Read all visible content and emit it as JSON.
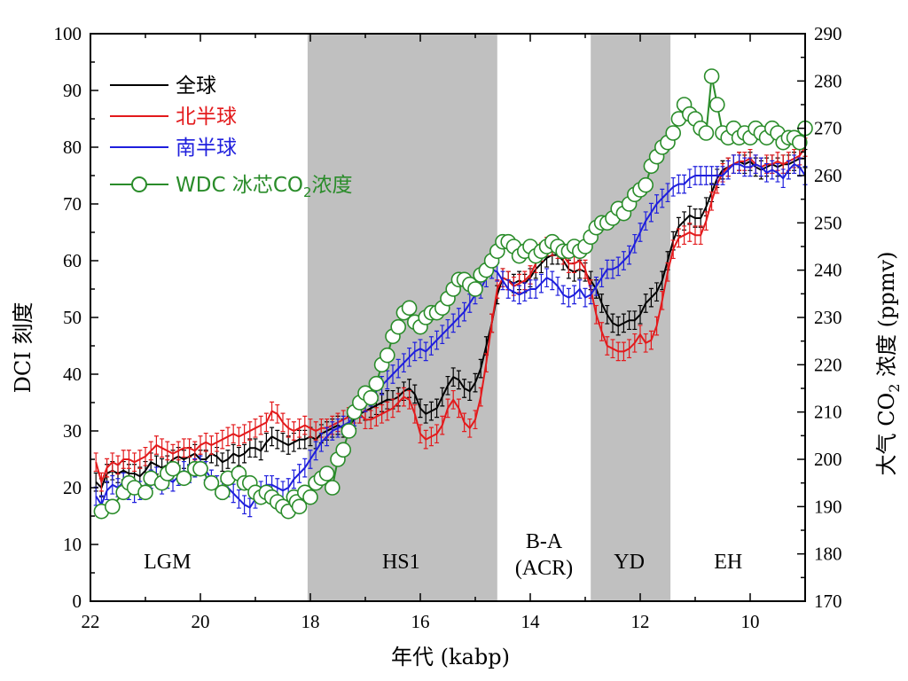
{
  "chart_data": {
    "type": "line",
    "xlabel": "年代 (kabp)",
    "ylabel_left": "DCI 刻度",
    "ylabel_right": "大气 CO₂ 浓度 (ppmv)",
    "ylabel_right_parts": {
      "prefix": "大气 CO",
      "subscript": "2",
      "suffix": " 浓度 (ppmv)"
    },
    "xlim": [
      22,
      9
    ],
    "ylim_left": [
      0,
      100
    ],
    "ylim_right": [
      170,
      290
    ],
    "x_ticks": [
      22,
      20,
      18,
      16,
      14,
      12,
      10
    ],
    "x_tick_labels": [
      "22",
      "20",
      "18",
      "16",
      "14",
      "12",
      "10"
    ],
    "y_left_ticks": [
      0,
      10,
      20,
      30,
      40,
      50,
      60,
      70,
      80,
      90,
      100
    ],
    "y_left_tick_labels": [
      "0",
      "10",
      "20",
      "30",
      "40",
      "50",
      "60",
      "70",
      "80",
      "90",
      "100"
    ],
    "y_right_ticks": [
      170,
      180,
      190,
      200,
      210,
      220,
      230,
      240,
      250,
      260,
      270,
      280,
      290
    ],
    "y_right_tick_labels": [
      "170",
      "180",
      "190",
      "200",
      "210",
      "220",
      "230",
      "240",
      "250",
      "260",
      "270",
      "280",
      "290"
    ],
    "shaded_periods": [
      {
        "from": 18.05,
        "to": 14.6,
        "color": "#c0c0c0"
      },
      {
        "from": 12.9,
        "to": 11.45,
        "color": "#c0c0c0"
      }
    ],
    "period_labels": [
      {
        "x": 20.6,
        "lines": [
          "LGM"
        ]
      },
      {
        "x": 16.35,
        "lines": [
          "HS1"
        ]
      },
      {
        "x": 13.75,
        "lines": [
          "B-A",
          "(ACR)"
        ]
      },
      {
        "x": 12.2,
        "lines": [
          "YD"
        ]
      },
      {
        "x": 10.4,
        "lines": [
          "EH"
        ]
      }
    ],
    "series": [
      {
        "name": "全球",
        "color": "#000000",
        "axis": "left",
        "errorbars": true,
        "x": [
          21.9,
          21.8,
          21.7,
          21.6,
          21.5,
          21.4,
          21.3,
          21.2,
          21.1,
          21.0,
          20.9,
          20.8,
          20.7,
          20.6,
          20.5,
          20.4,
          20.3,
          20.2,
          20.1,
          20.0,
          19.9,
          19.8,
          19.7,
          19.6,
          19.5,
          19.4,
          19.3,
          19.2,
          19.1,
          19.0,
          18.9,
          18.8,
          18.7,
          18.6,
          18.5,
          18.4,
          18.3,
          18.2,
          18.1,
          18.0,
          17.9,
          17.8,
          17.7,
          17.6,
          17.5,
          17.4,
          17.3,
          17.2,
          17.1,
          17.0,
          16.9,
          16.8,
          16.7,
          16.6,
          16.5,
          16.4,
          16.3,
          16.2,
          16.1,
          16.0,
          15.9,
          15.8,
          15.7,
          15.6,
          15.5,
          15.4,
          15.3,
          15.2,
          15.1,
          15.0,
          14.9,
          14.8,
          14.7,
          14.6,
          14.5,
          14.4,
          14.3,
          14.2,
          14.1,
          14.0,
          13.9,
          13.8,
          13.7,
          13.6,
          13.5,
          13.4,
          13.3,
          13.2,
          13.1,
          13.0,
          12.9,
          12.8,
          12.7,
          12.6,
          12.5,
          12.4,
          12.3,
          12.2,
          12.1,
          12.0,
          11.9,
          11.8,
          11.7,
          11.6,
          11.5,
          11.4,
          11.3,
          11.2,
          11.1,
          11.0,
          10.9,
          10.8,
          10.7,
          10.6,
          10.5,
          10.4,
          10.3,
          10.2,
          10.1,
          10.0,
          9.9,
          9.8,
          9.7,
          9.6,
          9.5,
          9.4,
          9.3,
          9.2,
          9.1,
          9.0
        ],
        "y": [
          21.0,
          20.0,
          22.5,
          23.0,
          22.5,
          23.0,
          22.5,
          22.5,
          22.0,
          23.0,
          24.5,
          24.0,
          23.5,
          24.0,
          25.0,
          25.5,
          25.0,
          25.5,
          26.0,
          25.0,
          25.0,
          26.0,
          25.5,
          24.5,
          25.0,
          26.0,
          25.5,
          26.0,
          27.0,
          27.0,
          26.5,
          28.0,
          29.0,
          28.5,
          28.0,
          27.5,
          28.0,
          28.5,
          28.5,
          29.0,
          28.5,
          29.5,
          30.0,
          30.5,
          31.0,
          30.5,
          31.0,
          32.0,
          33.0,
          33.5,
          34.0,
          34.5,
          35.0,
          35.5,
          35.5,
          36.0,
          37.0,
          37.5,
          36.5,
          34.0,
          33.0,
          33.5,
          34.0,
          36.0,
          38.0,
          39.5,
          39.0,
          37.5,
          37.0,
          38.5,
          41.0,
          45.0,
          49.0,
          54.0,
          57.0,
          56.5,
          56.0,
          56.5,
          56.0,
          57.0,
          58.5,
          59.5,
          60.5,
          61.0,
          61.0,
          60.0,
          58.5,
          58.0,
          58.5,
          58.0,
          56.5,
          55.0,
          52.5,
          50.5,
          49.0,
          48.5,
          49.0,
          49.5,
          49.5,
          50.5,
          52.5,
          53.5,
          54.5,
          56.5,
          60.0,
          63.5,
          66.0,
          67.0,
          68.0,
          67.5,
          67.5,
          69.5,
          72.0,
          74.5,
          76.0,
          76.5,
          77.0,
          77.5,
          77.0,
          77.5,
          76.5,
          76.0,
          76.5,
          77.0,
          76.5,
          77.0,
          77.0,
          77.5,
          78.0,
          78.0
        ]
      },
      {
        "name": "北半球",
        "color": "#e31a1c",
        "axis": "left",
        "errorbars": true,
        "x": [
          21.9,
          21.8,
          21.7,
          21.6,
          21.5,
          21.4,
          21.3,
          21.2,
          21.1,
          21.0,
          20.9,
          20.8,
          20.7,
          20.6,
          20.5,
          20.4,
          20.3,
          20.2,
          20.1,
          20.0,
          19.9,
          19.8,
          19.7,
          19.6,
          19.5,
          19.4,
          19.3,
          19.2,
          19.1,
          19.0,
          18.9,
          18.8,
          18.7,
          18.6,
          18.5,
          18.4,
          18.3,
          18.2,
          18.1,
          18.0,
          17.9,
          17.8,
          17.7,
          17.6,
          17.5,
          17.4,
          17.3,
          17.2,
          17.1,
          17.0,
          16.9,
          16.8,
          16.7,
          16.6,
          16.5,
          16.4,
          16.3,
          16.2,
          16.1,
          16.0,
          15.9,
          15.8,
          15.7,
          15.6,
          15.5,
          15.4,
          15.3,
          15.2,
          15.1,
          15.0,
          14.9,
          14.8,
          14.7,
          14.6,
          14.5,
          14.4,
          14.3,
          14.2,
          14.1,
          14.0,
          13.9,
          13.8,
          13.7,
          13.6,
          13.5,
          13.4,
          13.3,
          13.2,
          13.1,
          13.0,
          12.9,
          12.8,
          12.7,
          12.6,
          12.5,
          12.4,
          12.3,
          12.2,
          12.1,
          12.0,
          11.9,
          11.8,
          11.7,
          11.6,
          11.5,
          11.4,
          11.3,
          11.2,
          11.1,
          11.0,
          10.9,
          10.8,
          10.7,
          10.6,
          10.5,
          10.4,
          10.3,
          10.2,
          10.1,
          10.0,
          9.9,
          9.8,
          9.7,
          9.6,
          9.5,
          9.4,
          9.3,
          9.2,
          9.1,
          9.0
        ],
        "y": [
          24.5,
          21.0,
          23.5,
          24.5,
          24.0,
          25.0,
          25.0,
          24.5,
          25.0,
          25.5,
          26.5,
          27.5,
          27.0,
          26.5,
          26.0,
          26.5,
          27.0,
          27.0,
          26.5,
          27.5,
          28.0,
          27.5,
          28.0,
          28.5,
          29.0,
          29.5,
          29.0,
          29.5,
          30.0,
          30.5,
          31.0,
          31.5,
          33.5,
          33.0,
          31.5,
          30.5,
          30.0,
          30.5,
          31.0,
          30.5,
          30.0,
          30.5,
          30.5,
          31.0,
          31.5,
          32.0,
          32.5,
          33.0,
          33.0,
          32.0,
          32.0,
          32.5,
          33.0,
          33.5,
          34.0,
          35.0,
          36.0,
          35.5,
          33.0,
          29.5,
          28.5,
          29.0,
          29.5,
          31.0,
          34.0,
          35.5,
          34.0,
          31.5,
          30.5,
          32.0,
          36.0,
          42.0,
          49.0,
          55.0,
          57.0,
          56.5,
          55.5,
          56.0,
          56.5,
          57.5,
          59.5,
          61.5,
          62.5,
          62.5,
          62.0,
          61.0,
          59.5,
          59.5,
          60.0,
          58.5,
          55.0,
          50.5,
          47.5,
          45.0,
          44.5,
          44.0,
          44.0,
          44.5,
          45.5,
          47.0,
          45.5,
          46.0,
          48.5,
          53.0,
          58.0,
          62.0,
          64.0,
          64.5,
          65.0,
          64.5,
          64.5,
          67.0,
          70.5,
          73.5,
          75.5,
          76.5,
          77.0,
          77.5,
          77.5,
          78.0,
          77.0,
          76.5,
          77.0,
          77.0,
          77.5,
          77.0,
          77.5,
          78.0,
          78.5,
          80.0
        ]
      },
      {
        "name": "南半球",
        "color": "#1f1fdd",
        "axis": "left",
        "errorbars": true,
        "x": [
          21.9,
          21.8,
          21.7,
          21.6,
          21.5,
          21.4,
          21.3,
          21.2,
          21.1,
          21.0,
          20.9,
          20.8,
          20.7,
          20.6,
          20.5,
          20.4,
          20.3,
          20.2,
          20.1,
          20.0,
          19.9,
          19.8,
          19.7,
          19.6,
          19.5,
          19.4,
          19.3,
          19.2,
          19.1,
          19.0,
          18.9,
          18.8,
          18.7,
          18.6,
          18.5,
          18.4,
          18.3,
          18.2,
          18.1,
          18.0,
          17.9,
          17.8,
          17.7,
          17.6,
          17.5,
          17.4,
          17.3,
          17.2,
          17.1,
          17.0,
          16.9,
          16.8,
          16.7,
          16.6,
          16.5,
          16.4,
          16.3,
          16.2,
          16.1,
          16.0,
          15.9,
          15.8,
          15.7,
          15.6,
          15.5,
          15.4,
          15.3,
          15.2,
          15.1,
          15.0,
          14.9,
          14.8,
          14.7,
          14.6,
          14.5,
          14.4,
          14.3,
          14.2,
          14.1,
          14.0,
          13.9,
          13.8,
          13.7,
          13.6,
          13.5,
          13.4,
          13.3,
          13.2,
          13.1,
          13.0,
          12.9,
          12.8,
          12.7,
          12.6,
          12.5,
          12.4,
          12.3,
          12.2,
          12.1,
          12.0,
          11.9,
          11.8,
          11.7,
          11.6,
          11.5,
          11.4,
          11.3,
          11.2,
          11.1,
          11.0,
          10.9,
          10.8,
          10.7,
          10.6,
          10.5,
          10.4,
          10.3,
          10.2,
          10.1,
          10.0,
          9.9,
          9.8,
          9.7,
          9.6,
          9.5,
          9.4,
          9.3,
          9.2,
          9.1,
          9.0
        ],
        "y": [
          18.5,
          17.0,
          19.5,
          20.5,
          20.0,
          21.0,
          19.5,
          19.0,
          19.5,
          20.0,
          21.5,
          22.0,
          20.5,
          21.5,
          21.0,
          22.0,
          23.0,
          22.5,
          23.5,
          24.0,
          23.0,
          21.5,
          20.5,
          19.5,
          20.0,
          19.0,
          18.0,
          17.0,
          16.5,
          18.0,
          19.5,
          20.5,
          20.5,
          20.0,
          19.5,
          20.0,
          21.5,
          22.5,
          23.5,
          25.0,
          26.5,
          28.0,
          29.0,
          30.0,
          30.5,
          31.0,
          31.5,
          32.5,
          34.0,
          35.0,
          36.0,
          37.0,
          38.0,
          39.0,
          40.0,
          41.0,
          42.0,
          43.0,
          44.0,
          44.5,
          44.0,
          45.0,
          46.0,
          47.0,
          48.0,
          49.0,
          50.0,
          51.0,
          52.5,
          54.0,
          55.0,
          57.0,
          58.5,
          58.0,
          56.5,
          55.0,
          54.5,
          54.0,
          54.5,
          55.0,
          55.0,
          56.0,
          57.0,
          56.5,
          55.5,
          54.0,
          53.5,
          54.0,
          55.0,
          53.5,
          54.0,
          55.5,
          57.0,
          58.5,
          58.5,
          59.0,
          60.0,
          61.0,
          63.0,
          65.0,
          67.0,
          68.5,
          70.0,
          71.0,
          72.0,
          73.0,
          73.5,
          73.5,
          74.5,
          75.0,
          75.0,
          75.0,
          75.0,
          75.0,
          75.0,
          76.0,
          77.0,
          77.0,
          76.5,
          76.5,
          77.0,
          76.5,
          75.5,
          76.0,
          75.5,
          74.5,
          76.0,
          77.0,
          76.5,
          75.0
        ]
      },
      {
        "name": "WDC 冰芯CO₂浓度",
        "name_parts": {
          "prefix": "WDC 冰芯CO",
          "subscript": "2",
          "suffix": "浓度"
        },
        "color": "#2a8c2a",
        "axis": "right",
        "marker": "open-circle",
        "x": [
          21.8,
          21.6,
          21.4,
          21.3,
          21.2,
          21.0,
          20.9,
          20.7,
          20.6,
          20.5,
          20.3,
          20.1,
          20.0,
          19.8,
          19.6,
          19.5,
          19.3,
          19.2,
          19.1,
          19.0,
          18.9,
          18.8,
          18.7,
          18.6,
          18.5,
          18.4,
          18.3,
          18.25,
          18.2,
          18.1,
          18.0,
          17.9,
          17.8,
          17.7,
          17.6,
          17.5,
          17.4,
          17.3,
          17.2,
          17.1,
          17.0,
          16.9,
          16.8,
          16.7,
          16.6,
          16.5,
          16.4,
          16.3,
          16.2,
          16.1,
          16.0,
          15.9,
          15.8,
          15.7,
          15.6,
          15.5,
          15.4,
          15.3,
          15.2,
          15.1,
          15.0,
          14.9,
          14.8,
          14.7,
          14.6,
          14.5,
          14.4,
          14.3,
          14.2,
          14.1,
          14.0,
          13.9,
          13.8,
          13.7,
          13.6,
          13.5,
          13.4,
          13.3,
          13.2,
          13.1,
          13.0,
          12.9,
          12.8,
          12.7,
          12.6,
          12.5,
          12.4,
          12.3,
          12.2,
          12.1,
          12.0,
          11.9,
          11.8,
          11.7,
          11.6,
          11.5,
          11.4,
          11.3,
          11.2,
          11.1,
          11.0,
          10.9,
          10.8,
          10.7,
          10.6,
          10.5,
          10.4,
          10.3,
          10.2,
          10.1,
          10.0,
          9.9,
          9.8,
          9.7,
          9.6,
          9.5,
          9.4,
          9.3,
          9.2,
          9.1,
          9.0
        ],
        "y": [
          189,
          190,
          193,
          195,
          194,
          193,
          196,
          195,
          197,
          198,
          196,
          198,
          198,
          195,
          193,
          196,
          197,
          195,
          195,
          193,
          192,
          193,
          192,
          191,
          190,
          189,
          192,
          191,
          190,
          193,
          192,
          195,
          196,
          197,
          194,
          200,
          202,
          206,
          210,
          212,
          214,
          213,
          216,
          220,
          222,
          226,
          228,
          231,
          232,
          229,
          228,
          230,
          231,
          231,
          232,
          234,
          236,
          238,
          238,
          237,
          236,
          239,
          240,
          242,
          244,
          246,
          246,
          245,
          243,
          244,
          245,
          243,
          244,
          245,
          246,
          245,
          244,
          244,
          245,
          244,
          245,
          247,
          249,
          250,
          250,
          251,
          253,
          252,
          254,
          256,
          257,
          258,
          262,
          264,
          266,
          267,
          269,
          272,
          275,
          273,
          272,
          270,
          269,
          281,
          275,
          269,
          268,
          270,
          268,
          269,
          268,
          270,
          269,
          268,
          270,
          269,
          267,
          268,
          268,
          267,
          270
        ]
      }
    ]
  }
}
